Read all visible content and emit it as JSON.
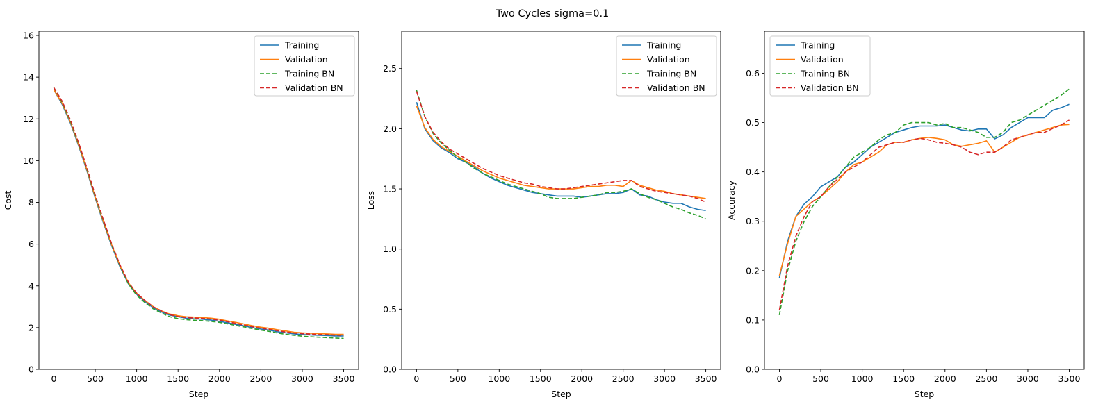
{
  "suptitle": "Two Cycles sigma=0.1",
  "colors": {
    "Training": "#1f77b4",
    "Validation": "#ff7f0e",
    "Training BN": "#2ca02c",
    "Validation BN": "#d62728"
  },
  "chart_data": [
    {
      "type": "line",
      "xlabel": "Step",
      "ylabel": "Cost",
      "xlim": [
        -180,
        3680
      ],
      "ylim": [
        0,
        16.2
      ],
      "xticks": [
        0,
        500,
        1000,
        1500,
        2000,
        2500,
        3000,
        3500
      ],
      "yticks": [
        0,
        2,
        4,
        6,
        8,
        10,
        12,
        14,
        16
      ],
      "legend": "top-right",
      "grid": false,
      "x": [
        0,
        100,
        200,
        300,
        400,
        500,
        600,
        700,
        800,
        900,
        1000,
        1100,
        1200,
        1300,
        1400,
        1500,
        1600,
        1700,
        1800,
        1900,
        2000,
        2100,
        2200,
        2300,
        2400,
        2500,
        2600,
        2700,
        2800,
        2900,
        3000,
        3100,
        3200,
        3300,
        3400,
        3500
      ],
      "series": [
        {
          "name": "Training",
          "style": "solid",
          "values": [
            13.4,
            12.7,
            11.8,
            10.7,
            9.5,
            8.2,
            7.0,
            5.9,
            4.9,
            4.1,
            3.6,
            3.25,
            2.95,
            2.75,
            2.6,
            2.52,
            2.45,
            2.42,
            2.4,
            2.36,
            2.3,
            2.23,
            2.15,
            2.08,
            2.0,
            1.93,
            1.88,
            1.8,
            1.75,
            1.7,
            1.67,
            1.65,
            1.63,
            1.62,
            1.6,
            1.6
          ]
        },
        {
          "name": "Validation",
          "style": "solid",
          "values": [
            13.4,
            12.75,
            11.85,
            10.75,
            9.55,
            8.25,
            7.05,
            5.95,
            4.95,
            4.15,
            3.65,
            3.3,
            3.0,
            2.8,
            2.65,
            2.57,
            2.52,
            2.5,
            2.48,
            2.45,
            2.4,
            2.32,
            2.25,
            2.17,
            2.09,
            2.02,
            1.97,
            1.9,
            1.84,
            1.78,
            1.75,
            1.73,
            1.71,
            1.7,
            1.68,
            1.68
          ]
        },
        {
          "name": "Training BN",
          "style": "dashed",
          "values": [
            13.5,
            12.8,
            11.9,
            10.8,
            9.6,
            8.3,
            7.1,
            5.95,
            4.95,
            4.1,
            3.55,
            3.2,
            2.9,
            2.7,
            2.52,
            2.43,
            2.38,
            2.35,
            2.33,
            2.3,
            2.25,
            2.18,
            2.1,
            2.03,
            1.95,
            1.88,
            1.82,
            1.74,
            1.68,
            1.63,
            1.59,
            1.56,
            1.54,
            1.52,
            1.5,
            1.48
          ]
        },
        {
          "name": "Validation BN",
          "style": "dashed",
          "values": [
            13.5,
            12.85,
            11.95,
            10.85,
            9.65,
            8.35,
            7.15,
            6.0,
            5.0,
            4.18,
            3.65,
            3.3,
            3.0,
            2.8,
            2.62,
            2.53,
            2.48,
            2.46,
            2.44,
            2.41,
            2.36,
            2.28,
            2.2,
            2.12,
            2.04,
            1.97,
            1.92,
            1.85,
            1.79,
            1.74,
            1.71,
            1.69,
            1.67,
            1.66,
            1.64,
            1.63
          ]
        }
      ]
    },
    {
      "type": "line",
      "xlabel": "Step",
      "ylabel": "Loss",
      "xlim": [
        -180,
        3680
      ],
      "ylim": [
        0,
        2.81
      ],
      "xticks": [
        0,
        500,
        1000,
        1500,
        2000,
        2500,
        3000,
        3500
      ],
      "yticks": [
        0.0,
        0.5,
        1.0,
        1.5,
        2.0,
        2.5
      ],
      "ytick_labels": [
        "0.0",
        "0.5",
        "1.0",
        "1.5",
        "2.0",
        "2.5"
      ],
      "legend": "top-right",
      "grid": false,
      "x": [
        0,
        100,
        200,
        300,
        400,
        500,
        600,
        700,
        800,
        900,
        1000,
        1100,
        1200,
        1300,
        1400,
        1500,
        1600,
        1700,
        1800,
        1900,
        2000,
        2100,
        2200,
        2300,
        2400,
        2500,
        2600,
        2700,
        2800,
        2900,
        3000,
        3100,
        3200,
        3300,
        3400,
        3500
      ],
      "series": [
        {
          "name": "Training",
          "style": "solid",
          "values": [
            2.22,
            2.0,
            1.9,
            1.84,
            1.8,
            1.75,
            1.72,
            1.68,
            1.63,
            1.59,
            1.56,
            1.53,
            1.51,
            1.49,
            1.47,
            1.46,
            1.45,
            1.44,
            1.44,
            1.44,
            1.43,
            1.44,
            1.45,
            1.46,
            1.46,
            1.47,
            1.5,
            1.45,
            1.44,
            1.41,
            1.39,
            1.38,
            1.38,
            1.35,
            1.33,
            1.32
          ]
        },
        {
          "name": "Validation",
          "style": "solid",
          "values": [
            2.19,
            2.01,
            1.91,
            1.85,
            1.81,
            1.77,
            1.73,
            1.69,
            1.65,
            1.62,
            1.59,
            1.57,
            1.55,
            1.53,
            1.52,
            1.51,
            1.5,
            1.5,
            1.5,
            1.5,
            1.51,
            1.52,
            1.52,
            1.53,
            1.53,
            1.52,
            1.57,
            1.53,
            1.51,
            1.49,
            1.48,
            1.46,
            1.45,
            1.44,
            1.43,
            1.42
          ]
        },
        {
          "name": "Training BN",
          "style": "dashed",
          "values": [
            2.32,
            2.1,
            1.96,
            1.88,
            1.82,
            1.76,
            1.72,
            1.67,
            1.63,
            1.6,
            1.57,
            1.54,
            1.52,
            1.5,
            1.48,
            1.46,
            1.43,
            1.42,
            1.42,
            1.42,
            1.43,
            1.44,
            1.45,
            1.47,
            1.47,
            1.48,
            1.5,
            1.46,
            1.43,
            1.41,
            1.38,
            1.35,
            1.33,
            1.3,
            1.28,
            1.25
          ]
        },
        {
          "name": "Validation BN",
          "style": "dashed",
          "values": [
            2.31,
            2.1,
            1.97,
            1.89,
            1.83,
            1.79,
            1.75,
            1.71,
            1.67,
            1.64,
            1.61,
            1.59,
            1.57,
            1.55,
            1.54,
            1.52,
            1.51,
            1.5,
            1.5,
            1.51,
            1.52,
            1.53,
            1.54,
            1.55,
            1.56,
            1.57,
            1.57,
            1.52,
            1.5,
            1.48,
            1.47,
            1.46,
            1.45,
            1.44,
            1.42,
            1.39
          ]
        }
      ]
    },
    {
      "type": "line",
      "xlabel": "Step",
      "ylabel": "Accuracy",
      "xlim": [
        -180,
        3680
      ],
      "ylim": [
        0,
        0.685
      ],
      "xticks": [
        0,
        500,
        1000,
        1500,
        2000,
        2500,
        3000,
        3500
      ],
      "yticks": [
        0.0,
        0.1,
        0.2,
        0.3,
        0.4,
        0.5,
        0.6
      ],
      "ytick_labels": [
        "0.0",
        "0.1",
        "0.2",
        "0.3",
        "0.4",
        "0.5",
        "0.6"
      ],
      "legend": "top-left",
      "grid": false,
      "x": [
        0,
        100,
        200,
        300,
        400,
        500,
        600,
        700,
        800,
        900,
        1000,
        1100,
        1200,
        1300,
        1400,
        1500,
        1600,
        1700,
        1800,
        1900,
        2000,
        2100,
        2200,
        2300,
        2400,
        2500,
        2600,
        2700,
        2800,
        2900,
        3000,
        3100,
        3200,
        3300,
        3400,
        3500
      ],
      "series": [
        {
          "name": "Training",
          "style": "solid",
          "values": [
            0.185,
            0.26,
            0.31,
            0.335,
            0.35,
            0.37,
            0.38,
            0.39,
            0.41,
            0.42,
            0.435,
            0.45,
            0.46,
            0.47,
            0.48,
            0.485,
            0.49,
            0.493,
            0.493,
            0.493,
            0.495,
            0.49,
            0.485,
            0.483,
            0.487,
            0.487,
            0.467,
            0.475,
            0.49,
            0.5,
            0.51,
            0.51,
            0.51,
            0.525,
            0.53,
            0.537
          ]
        },
        {
          "name": "Validation",
          "style": "solid",
          "values": [
            0.19,
            0.255,
            0.31,
            0.325,
            0.34,
            0.35,
            0.365,
            0.38,
            0.4,
            0.415,
            0.42,
            0.43,
            0.44,
            0.455,
            0.46,
            0.46,
            0.465,
            0.468,
            0.47,
            0.468,
            0.465,
            0.455,
            0.452,
            0.455,
            0.458,
            0.463,
            0.44,
            0.45,
            0.46,
            0.47,
            0.475,
            0.48,
            0.485,
            0.49,
            0.495,
            0.496
          ]
        },
        {
          "name": "Training BN",
          "style": "dashed",
          "values": [
            0.11,
            0.2,
            0.26,
            0.3,
            0.33,
            0.35,
            0.37,
            0.39,
            0.41,
            0.43,
            0.44,
            0.45,
            0.465,
            0.475,
            0.48,
            0.495,
            0.5,
            0.5,
            0.5,
            0.495,
            0.498,
            0.49,
            0.49,
            0.485,
            0.48,
            0.47,
            0.47,
            0.48,
            0.5,
            0.505,
            0.515,
            0.525,
            0.535,
            0.545,
            0.555,
            0.568
          ]
        },
        {
          "name": "Validation BN",
          "style": "dashed",
          "values": [
            0.12,
            0.21,
            0.27,
            0.31,
            0.34,
            0.35,
            0.37,
            0.385,
            0.4,
            0.41,
            0.42,
            0.435,
            0.45,
            0.455,
            0.46,
            0.46,
            0.465,
            0.468,
            0.465,
            0.46,
            0.458,
            0.455,
            0.45,
            0.44,
            0.435,
            0.44,
            0.44,
            0.45,
            0.465,
            0.47,
            0.475,
            0.48,
            0.48,
            0.488,
            0.495,
            0.505
          ]
        }
      ]
    }
  ]
}
